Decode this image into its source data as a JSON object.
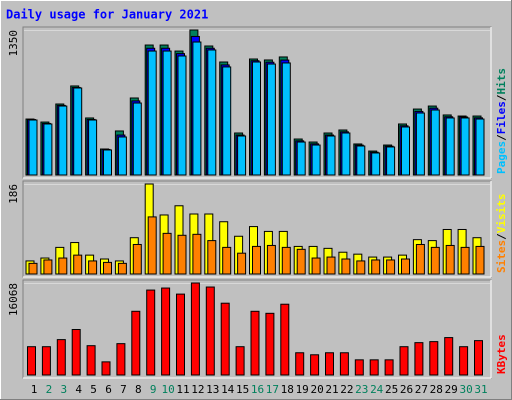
{
  "chart_data": [
    {
      "type": "bar",
      "title": "Daily usage for January 2021",
      "ylim": [
        0,
        1350
      ],
      "yticks": [
        1350
      ],
      "legend_separator": "/",
      "series": [
        {
          "name": "Pages",
          "color": "#00c0ff",
          "values": [
            512,
            475,
            642,
            810,
            512,
            233,
            354,
            670,
            1154,
            1154,
            1108,
            1238,
            1164,
            1006,
            363,
            1052,
            1033,
            1043,
            307,
            279,
            363,
            391,
            270,
            205,
            261,
            447,
            577,
            605,
            531,
            531,
            521
          ]
        },
        {
          "name": "Files",
          "color": "#0000ff",
          "values": [
            516,
            480,
            648,
            815,
            517,
            238,
            372,
            690,
            1180,
            1180,
            1130,
            1290,
            1180,
            1025,
            372,
            1064,
            1050,
            1070,
            318,
            290,
            372,
            402,
            278,
            212,
            268,
            458,
            592,
            622,
            542,
            540,
            532
          ]
        },
        {
          "name": "Hits",
          "color": "#00805c",
          "values": [
            521,
            493,
            661,
            829,
            531,
            242,
            410,
            717,
            1210,
            1210,
            1154,
            1350,
            1201,
            1052,
            391,
            1080,
            1071,
            1099,
            335,
            307,
            391,
            419,
            289,
            223,
            279,
            475,
            614,
            642,
            559,
            549,
            549
          ]
        }
      ]
    },
    {
      "type": "bar",
      "ylim": [
        0,
        186
      ],
      "yticks": [
        186
      ],
      "legend_separator": "/",
      "series": [
        {
          "name": "Sites",
          "color": "#ff8000",
          "values": [
            22,
            29,
            33,
            39,
            27,
            24,
            22,
            61,
            118,
            84,
            80,
            82,
            69,
            55,
            43,
            57,
            59,
            55,
            51,
            33,
            35,
            31,
            27,
            29,
            29,
            31,
            61,
            55,
            59,
            55,
            57
          ]
        },
        {
          "name": "Visits",
          "color": "#ffff00",
          "values": [
            27,
            33,
            55,
            65,
            39,
            31,
            27,
            75,
            186,
            122,
            141,
            124,
            124,
            108,
            78,
            98,
            88,
            88,
            57,
            57,
            53,
            45,
            41,
            35,
            35,
            39,
            71,
            69,
            92,
            92,
            75
          ]
        }
      ]
    },
    {
      "type": "bar",
      "ylim": [
        0,
        16068
      ],
      "yticks": [
        16068
      ],
      "categories": [
        "1",
        "2",
        "3",
        "4",
        "5",
        "6",
        "7",
        "8",
        "9",
        "10",
        "11",
        "12",
        "13",
        "14",
        "15",
        "16",
        "17",
        "18",
        "19",
        "20",
        "21",
        "22",
        "23",
        "24",
        "25",
        "26",
        "27",
        "28",
        "29",
        "30",
        "31"
      ],
      "category_colors": [
        "#000000",
        "#00805c",
        "#00805c",
        "#000000",
        "#000000",
        "#000000",
        "#000000",
        "#000000",
        "#00805c",
        "#00805c",
        "#000000",
        "#000000",
        "#000000",
        "#000000",
        "#000000",
        "#00805c",
        "#00805c",
        "#000000",
        "#000000",
        "#000000",
        "#000000",
        "#000000",
        "#00805c",
        "#00805c",
        "#000000",
        "#000000",
        "#000000",
        "#000000",
        "#000000",
        "#00805c",
        "#00805c"
      ],
      "series": [
        {
          "name": "KBytes",
          "color": "#ff0000",
          "values": [
            4945,
            4945,
            6181,
            7947,
            5121,
            2296,
            5475,
            11126,
            14834,
            15187,
            14128,
            16068,
            15364,
            12539,
            4945,
            11126,
            10773,
            12362,
            3885,
            3532,
            3885,
            3885,
            2649,
            2649,
            2649,
            4945,
            5651,
            5828,
            6534,
            4945,
            6004
          ]
        }
      ]
    }
  ]
}
